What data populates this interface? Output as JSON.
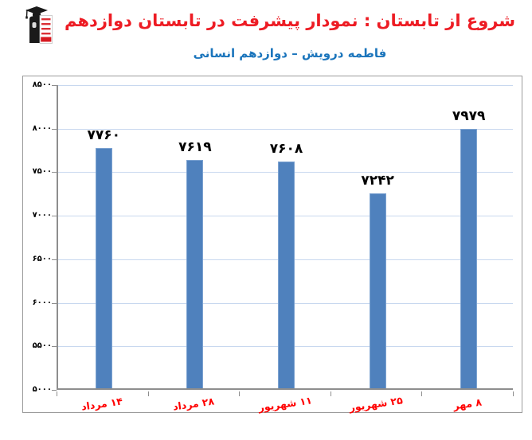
{
  "header": {
    "title": "شروع از تابستان : نمودار پیشرفت در تابستان دوازدهم",
    "subtitle": "فاطمه درویش – دوازدهم انسانی",
    "logo": "graduate-figure-with-red-text-board"
  },
  "colors": {
    "title_color": "#ED1C24",
    "subtitle_color": "#1B75BC",
    "bar_fill": "#4F81BD",
    "bar_border": "#7DA3D1",
    "gridline_color": "#C8D8EF",
    "axis_color": "#8E8E8E",
    "frame_border": "#9B9B9B",
    "xlabel_color": "#FF0000",
    "value_label_color": "#000000",
    "logo_red": "#D71920"
  },
  "chart_data": {
    "type": "bar",
    "categories": [
      "۱۴ مرداد",
      "۲۸ مرداد",
      "۱۱ شهریور",
      "۲۵ شهریور",
      "۸ مهر"
    ],
    "values": [
      7760,
      7619,
      7608,
      7242,
      7979
    ],
    "value_labels": [
      "۷۷۶۰",
      "۷۶۱۹",
      "۷۶۰۸",
      "۷۲۴۲",
      "۷۹۷۹"
    ],
    "title": "شروع از تابستان : نمودار پیشرفت در تابستان دوازدهم",
    "xlabel": "",
    "ylabel": "",
    "ylim": [
      5000,
      8500
    ],
    "y_ticks": [
      5000,
      5500,
      6000,
      6500,
      7000,
      7500,
      8000,
      8500
    ],
    "y_tick_labels": [
      "۵۰۰۰",
      "۵۵۰۰",
      "۶۰۰۰",
      "۶۵۰۰",
      "۷۰۰۰",
      "۷۵۰۰",
      "۸۰۰۰",
      "۸۵۰۰"
    ],
    "grid": true,
    "legend": false
  }
}
